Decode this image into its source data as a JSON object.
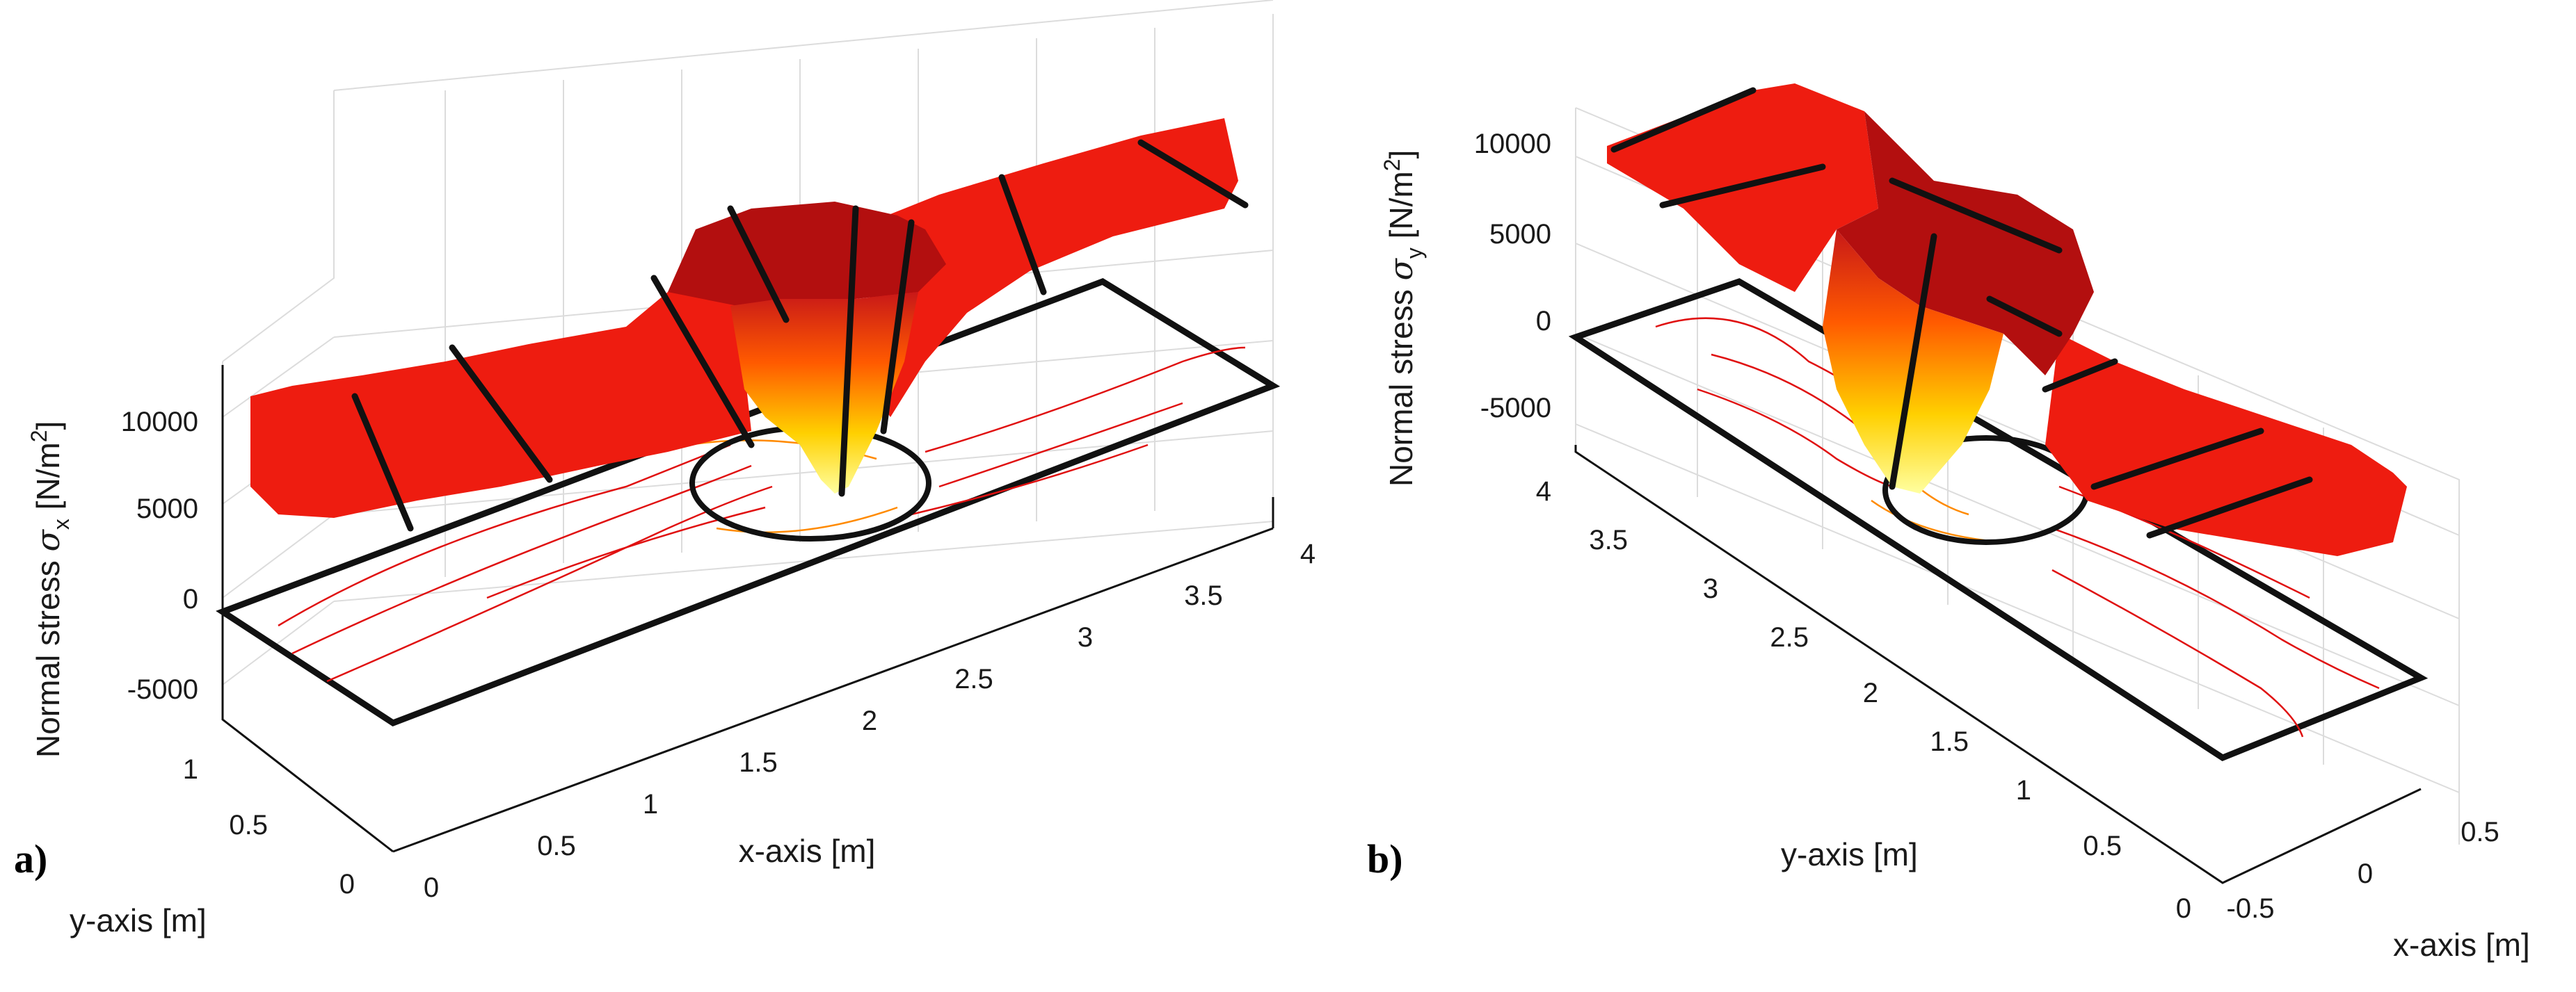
{
  "chart_data": [
    {
      "panel": "a)",
      "type": "surface3d",
      "zlabel_prefix": "Normal stress ",
      "zlabel_symbol": "σ",
      "zlabel_sub": "x",
      "zlabel_suffix": " [N/m",
      "zlabel_sup": "2",
      "zlabel_close": "]",
      "xlabel": "x-axis [m]",
      "ylabel": "y-axis [m]",
      "zticks": [
        "10000",
        "5000",
        "0",
        "-5000"
      ],
      "xticks": [
        "0",
        "0.5",
        "1",
        "1.5",
        "2",
        "2.5",
        "3",
        "3.5",
        "4"
      ],
      "yticks": [
        "1",
        "0.5",
        "0"
      ],
      "xlim": [
        0,
        4
      ],
      "ylim": [
        0,
        1
      ],
      "zlim": [
        -5000,
        12000
      ],
      "far_field_stress": 10000,
      "hole_center": [
        2,
        0.5
      ],
      "hole_radius": 0.25,
      "colormap": "hot"
    },
    {
      "panel": "b)",
      "type": "surface3d",
      "zlabel_prefix": "Normal stress ",
      "zlabel_symbol": "σ",
      "zlabel_sub": "y",
      "zlabel_suffix": " [N/m",
      "zlabel_sup": "2",
      "zlabel_close": "]",
      "xlabel": "x-axis [m]",
      "ylabel": "y-axis [m]",
      "zticks": [
        "10000",
        "5000",
        "0",
        "-5000"
      ],
      "yticks": [
        "4",
        "3.5",
        "3",
        "2.5",
        "2",
        "1.5",
        "1",
        "0.5",
        "0"
      ],
      "xticks": [
        "-0.5",
        "0",
        "0.5"
      ],
      "xlim": [
        -0.5,
        0.5
      ],
      "ylim": [
        0,
        4
      ],
      "zlim": [
        -5000,
        12000
      ],
      "far_field_stress": 10000,
      "hole_center": [
        0,
        2
      ],
      "hole_radius": 0.25,
      "colormap": "hot"
    }
  ]
}
